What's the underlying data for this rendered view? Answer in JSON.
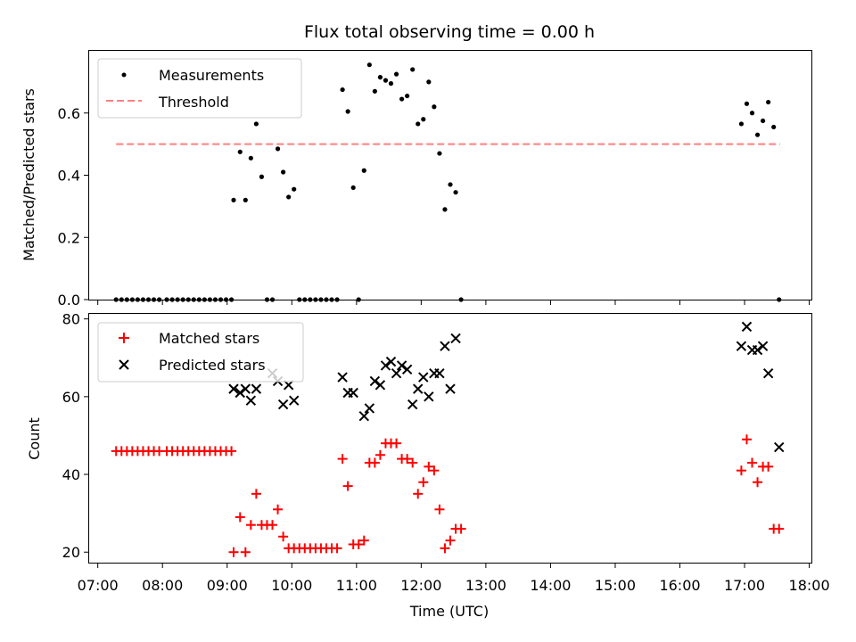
{
  "chart_data": [
    {
      "type": "scatter",
      "title": "Flux total observing time = 0.00 h",
      "ylabel": "Matched/Predicted stars",
      "ylim": [
        0,
        0.8
      ],
      "yticks": [
        0.0,
        0.2,
        0.4,
        0.6
      ],
      "ytick_labels": [
        "0.0",
        "0.2",
        "0.4",
        "0.6"
      ],
      "legend_position": "top-left",
      "threshold": {
        "name": "Threshold",
        "value": 0.5,
        "x_start": "07:17",
        "x_end": "17:33",
        "color": "#ff7f7f"
      },
      "series": [
        {
          "name": "Measurements",
          "color": "#000000",
          "points": [
            [
              "07:17",
              0
            ],
            [
              "07:22",
              0
            ],
            [
              "07:27",
              0
            ],
            [
              "07:32",
              0
            ],
            [
              "07:37",
              0
            ],
            [
              "07:42",
              0
            ],
            [
              "07:47",
              0
            ],
            [
              "07:52",
              0
            ],
            [
              "07:57",
              0
            ],
            [
              "08:04",
              0
            ],
            [
              "08:09",
              0
            ],
            [
              "08:14",
              0
            ],
            [
              "08:19",
              0
            ],
            [
              "08:24",
              0
            ],
            [
              "08:29",
              0
            ],
            [
              "08:34",
              0
            ],
            [
              "08:39",
              0
            ],
            [
              "08:44",
              0
            ],
            [
              "08:49",
              0
            ],
            [
              "08:54",
              0
            ],
            [
              "08:59",
              0
            ],
            [
              "09:04",
              0
            ],
            [
              "09:06",
              0.32
            ],
            [
              "09:12",
              0.475
            ],
            [
              "09:17",
              0.32
            ],
            [
              "09:22",
              0.455
            ],
            [
              "09:27",
              0.565
            ],
            [
              "09:32",
              0.395
            ],
            [
              "09:37",
              0
            ],
            [
              "09:42",
              0
            ],
            [
              "09:47",
              0.485
            ],
            [
              "09:52",
              0.41
            ],
            [
              "09:57",
              0.33
            ],
            [
              "10:02",
              0.355
            ],
            [
              "10:07",
              0
            ],
            [
              "10:12",
              0
            ],
            [
              "10:17",
              0
            ],
            [
              "10:22",
              0
            ],
            [
              "10:27",
              0
            ],
            [
              "10:32",
              0
            ],
            [
              "10:37",
              0
            ],
            [
              "10:42",
              0
            ],
            [
              "10:47",
              0.675
            ],
            [
              "10:52",
              0.605
            ],
            [
              "10:57",
              0.36
            ],
            [
              "11:02",
              0
            ],
            [
              "11:07",
              0.415
            ],
            [
              "11:12",
              0.755
            ],
            [
              "11:17",
              0.67
            ],
            [
              "11:22",
              0.715
            ],
            [
              "11:27",
              0.705
            ],
            [
              "11:32",
              0.695
            ],
            [
              "11:37",
              0.725
            ],
            [
              "11:42",
              0.645
            ],
            [
              "11:47",
              0.655
            ],
            [
              "11:52",
              0.74
            ],
            [
              "11:57",
              0.565
            ],
            [
              "12:02",
              0.58
            ],
            [
              "12:07",
              0.7
            ],
            [
              "12:12",
              0.62
            ],
            [
              "12:17",
              0.47
            ],
            [
              "12:22",
              0.29
            ],
            [
              "12:27",
              0.37
            ],
            [
              "12:32",
              0.345
            ],
            [
              "12:37",
              0
            ],
            [
              "16:57",
              0.565
            ],
            [
              "17:02",
              0.63
            ],
            [
              "17:07",
              0.6
            ],
            [
              "17:12",
              0.53
            ],
            [
              "17:17",
              0.575
            ],
            [
              "17:22",
              0.635
            ],
            [
              "17:27",
              0.555
            ],
            [
              "17:32",
              0
            ]
          ]
        }
      ]
    },
    {
      "type": "scatter",
      "xlabel": "Time (UTC)",
      "ylabel": "Count",
      "ylim": [
        17.3,
        81.3
      ],
      "yticks": [
        20,
        40,
        60,
        80
      ],
      "ytick_labels": [
        "20",
        "40",
        "60",
        "80"
      ],
      "xticks": [
        "07:00",
        "08:00",
        "09:00",
        "10:00",
        "11:00",
        "12:00",
        "13:00",
        "14:00",
        "15:00",
        "16:00",
        "17:00",
        "18:00"
      ],
      "xlim": [
        "06:52",
        "18:02"
      ],
      "legend_position": "top-left",
      "series": [
        {
          "name": "Matched stars",
          "color": "#ff0000",
          "marker": "plus",
          "points": [
            [
              "07:17",
              46
            ],
            [
              "07:22",
              46
            ],
            [
              "07:27",
              46
            ],
            [
              "07:32",
              46
            ],
            [
              "07:37",
              46
            ],
            [
              "07:42",
              46
            ],
            [
              "07:47",
              46
            ],
            [
              "07:52",
              46
            ],
            [
              "07:57",
              46
            ],
            [
              "08:04",
              46
            ],
            [
              "08:09",
              46
            ],
            [
              "08:14",
              46
            ],
            [
              "08:19",
              46
            ],
            [
              "08:24",
              46
            ],
            [
              "08:29",
              46
            ],
            [
              "08:34",
              46
            ],
            [
              "08:39",
              46
            ],
            [
              "08:44",
              46
            ],
            [
              "08:49",
              46
            ],
            [
              "08:54",
              46
            ],
            [
              "08:59",
              46
            ],
            [
              "09:04",
              46
            ],
            [
              "09:06",
              20
            ],
            [
              "09:12",
              29
            ],
            [
              "09:17",
              20
            ],
            [
              "09:22",
              27
            ],
            [
              "09:27",
              35
            ],
            [
              "09:32",
              27
            ],
            [
              "09:37",
              27
            ],
            [
              "09:42",
              27
            ],
            [
              "09:47",
              31
            ],
            [
              "09:52",
              24
            ],
            [
              "09:57",
              21
            ],
            [
              "10:02",
              21
            ],
            [
              "10:07",
              21
            ],
            [
              "10:12",
              21
            ],
            [
              "10:17",
              21
            ],
            [
              "10:22",
              21
            ],
            [
              "10:27",
              21
            ],
            [
              "10:32",
              21
            ],
            [
              "10:37",
              21
            ],
            [
              "10:42",
              21
            ],
            [
              "10:47",
              44
            ],
            [
              "10:52",
              37
            ],
            [
              "10:57",
              22
            ],
            [
              "11:02",
              22
            ],
            [
              "11:07",
              23
            ],
            [
              "11:12",
              43
            ],
            [
              "11:17",
              43
            ],
            [
              "11:22",
              45
            ],
            [
              "11:27",
              48
            ],
            [
              "11:32",
              48
            ],
            [
              "11:37",
              48
            ],
            [
              "11:42",
              44
            ],
            [
              "11:47",
              44
            ],
            [
              "11:52",
              43
            ],
            [
              "11:57",
              35
            ],
            [
              "12:02",
              38
            ],
            [
              "12:07",
              42
            ],
            [
              "12:12",
              41
            ],
            [
              "12:17",
              31
            ],
            [
              "12:22",
              21
            ],
            [
              "12:27",
              23
            ],
            [
              "12:32",
              26
            ],
            [
              "12:37",
              26
            ],
            [
              "16:57",
              41
            ],
            [
              "17:02",
              49
            ],
            [
              "17:07",
              43
            ],
            [
              "17:12",
              38
            ],
            [
              "17:17",
              42
            ],
            [
              "17:22",
              42
            ],
            [
              "17:27",
              26
            ],
            [
              "17:32",
              26
            ]
          ]
        },
        {
          "name": "Predicted stars",
          "color": "#000000",
          "marker": "x",
          "points": [
            [
              "09:06",
              62
            ],
            [
              "09:12",
              61
            ],
            [
              "09:17",
              62
            ],
            [
              "09:22",
              59
            ],
            [
              "09:27",
              62
            ],
            [
              "09:42",
              66
            ],
            [
              "09:47",
              64
            ],
            [
              "09:52",
              58
            ],
            [
              "09:57",
              63
            ],
            [
              "10:02",
              59
            ],
            [
              "10:47",
              65
            ],
            [
              "10:52",
              61
            ],
            [
              "10:57",
              61
            ],
            [
              "11:07",
              55
            ],
            [
              "11:12",
              57
            ],
            [
              "11:17",
              64
            ],
            [
              "11:22",
              63
            ],
            [
              "11:27",
              68
            ],
            [
              "11:32",
              69
            ],
            [
              "11:37",
              66
            ],
            [
              "11:42",
              68
            ],
            [
              "11:47",
              67
            ],
            [
              "11:52",
              58
            ],
            [
              "11:57",
              62
            ],
            [
              "12:02",
              65
            ],
            [
              "12:07",
              60
            ],
            [
              "12:12",
              66
            ],
            [
              "12:17",
              66
            ],
            [
              "12:22",
              73
            ],
            [
              "12:27",
              62
            ],
            [
              "12:32",
              75
            ],
            [
              "16:57",
              73
            ],
            [
              "17:02",
              78
            ],
            [
              "17:07",
              72
            ],
            [
              "17:12",
              72
            ],
            [
              "17:17",
              73
            ],
            [
              "17:22",
              66
            ],
            [
              "17:32",
              47
            ]
          ]
        }
      ]
    }
  ]
}
